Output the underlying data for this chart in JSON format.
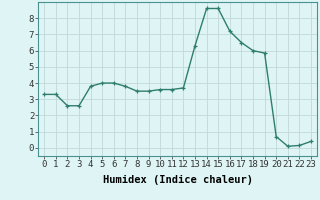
{
  "x": [
    0,
    1,
    2,
    3,
    4,
    5,
    6,
    7,
    8,
    9,
    10,
    11,
    12,
    13,
    14,
    15,
    16,
    17,
    18,
    19,
    20,
    21,
    22,
    23
  ],
  "y": [
    3.3,
    3.3,
    2.6,
    2.6,
    3.8,
    4.0,
    4.0,
    3.8,
    3.5,
    3.5,
    3.6,
    3.6,
    3.7,
    6.3,
    8.6,
    8.6,
    7.2,
    6.5,
    6.0,
    5.85,
    0.7,
    0.1,
    0.15,
    0.4
  ],
  "line_color": "#2e7d6e",
  "marker": "+",
  "marker_size": 3,
  "linewidth": 1.0,
  "xlabel": "Humidex (Indice chaleur)",
  "xlabel_fontsize": 7.5,
  "xlim": [
    -0.5,
    23.5
  ],
  "ylim": [
    -0.5,
    9.0
  ],
  "yticks": [
    0,
    1,
    2,
    3,
    4,
    5,
    6,
    7,
    8
  ],
  "xticks": [
    0,
    1,
    2,
    3,
    4,
    5,
    6,
    7,
    8,
    9,
    10,
    11,
    12,
    13,
    14,
    15,
    16,
    17,
    18,
    19,
    20,
    21,
    22,
    23
  ],
  "bg_color": "#dff5f5",
  "grid_color": "#c0d8d8",
  "tick_fontsize": 6.5,
  "spine_color": "#4a9090"
}
